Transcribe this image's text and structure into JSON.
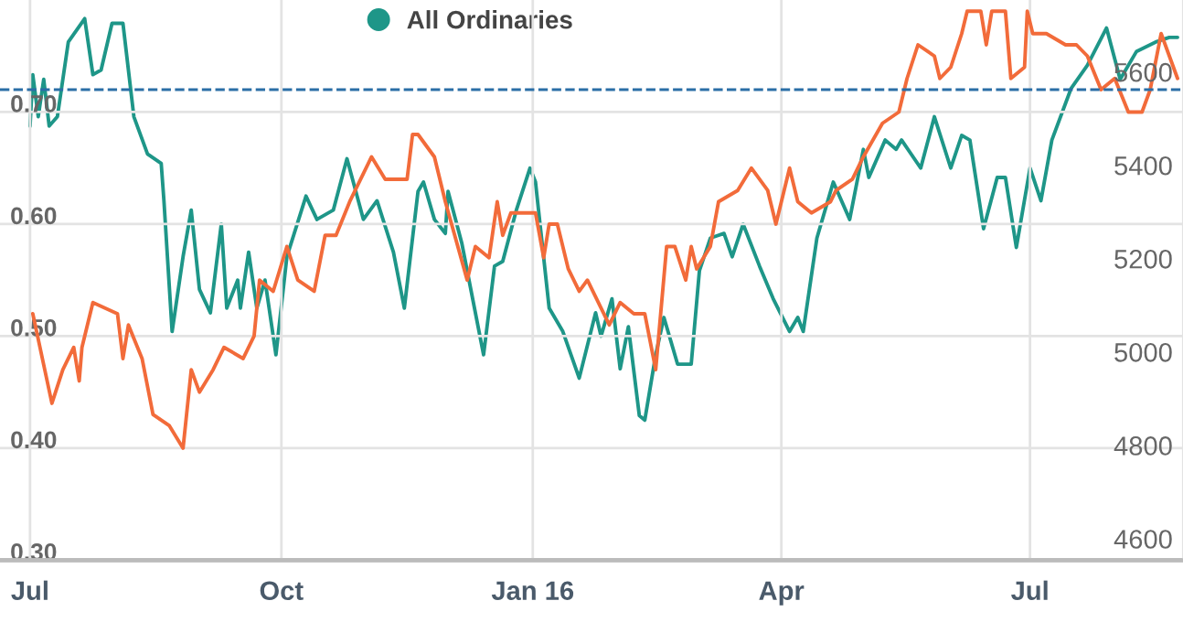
{
  "chart_data": {
    "type": "line",
    "legend": "top left",
    "grid": true,
    "xlim": [
      "2015-06-20",
      "2016-08-26"
    ],
    "xticks": [
      {
        "value": "2015-07-01",
        "label": "Jul"
      },
      {
        "value": "2015-10-01",
        "label": "Oct"
      },
      {
        "value": "2016-01-01",
        "label": "Jan 16"
      },
      {
        "value": "2016-04-01",
        "label": "Apr"
      },
      {
        "value": "2016-07-01",
        "label": "Jul"
      }
    ],
    "ylim": [
      0.3,
      0.8
    ],
    "yticks": [
      {
        "value": 0.3,
        "label": "0.30"
      },
      {
        "value": 0.4,
        "label": "0.40"
      },
      {
        "value": 0.5,
        "label": "0.50"
      },
      {
        "value": 0.6,
        "label": "0.60"
      },
      {
        "value": 0.7,
        "label": "0.70"
      }
    ],
    "y2lim": [
      4560,
      5760
    ],
    "y2ticks": [
      4600,
      4800,
      5000,
      5200,
      5400,
      5600
    ],
    "ref_lines": [
      {
        "axis": "y",
        "value": 0.72,
        "color": "#2a6ea6",
        "line_style": "dashed"
      }
    ],
    "series": [
      {
        "color": "#f26b3a",
        "x": [
          "2015-07-02",
          "2015-07-09",
          "2015-07-13",
          "2015-07-17",
          "2015-07-19",
          "2015-07-20",
          "2015-07-24",
          "2015-08-02",
          "2015-08-04",
          "2015-08-06",
          "2015-08-11",
          "2015-08-15",
          "2015-08-21",
          "2015-08-26",
          "2015-08-29",
          "2015-09-01",
          "2015-09-06",
          "2015-09-10",
          "2015-09-17",
          "2015-09-21",
          "2015-09-23",
          "2015-09-28",
          "2015-10-03",
          "2015-10-07",
          "2015-10-13",
          "2015-10-17",
          "2015-10-21",
          "2015-10-26",
          "2015-11-03",
          "2015-11-08",
          "2015-11-16",
          "2015-11-18",
          "2015-11-20",
          "2015-11-26",
          "2015-11-30",
          "2015-12-08",
          "2015-12-11",
          "2015-12-16",
          "2015-12-19",
          "2015-12-21",
          "2015-12-24",
          "2015-12-31",
          "2016-01-02",
          "2016-01-05",
          "2016-01-07",
          "2016-01-10",
          "2016-01-14",
          "2016-01-18",
          "2016-01-21",
          "2016-01-25",
          "2016-01-29",
          "2016-02-02",
          "2016-02-07",
          "2016-02-11",
          "2016-02-15",
          "2016-02-19",
          "2016-02-22",
          "2016-02-26",
          "2016-02-28",
          "2016-03-01",
          "2016-03-06",
          "2016-03-09",
          "2016-03-16",
          "2016-03-21",
          "2016-03-27",
          "2016-03-30",
          "2016-04-01",
          "2016-04-04",
          "2016-04-07",
          "2016-04-12",
          "2016-04-19",
          "2016-04-21",
          "2016-04-27",
          "2016-05-01",
          "2016-05-08",
          "2016-05-14",
          "2016-05-17",
          "2016-05-21",
          "2016-05-27",
          "2016-05-29",
          "2016-06-02",
          "2016-06-06",
          "2016-06-08",
          "2016-06-13",
          "2016-06-15",
          "2016-06-17",
          "2016-06-22",
          "2016-06-24",
          "2016-06-29",
          "2016-06-30",
          "2016-07-02",
          "2016-07-07",
          "2016-07-14",
          "2016-07-18",
          "2016-07-22",
          "2016-07-27",
          "2016-08-01",
          "2016-08-06",
          "2016-08-11",
          "2016-08-14",
          "2016-08-18",
          "2016-08-21",
          "2016-08-24"
        ],
        "values": [
          0.52,
          0.44,
          0.47,
          0.49,
          0.46,
          0.49,
          0.53,
          0.52,
          0.48,
          0.51,
          0.48,
          0.43,
          0.42,
          0.4,
          0.47,
          0.45,
          0.47,
          0.49,
          0.48,
          0.5,
          0.55,
          0.54,
          0.58,
          0.55,
          0.54,
          0.59,
          0.59,
          0.62,
          0.66,
          0.64,
          0.64,
          0.68,
          0.68,
          0.66,
          0.62,
          0.55,
          0.58,
          0.57,
          0.62,
          0.59,
          0.61,
          0.61,
          0.61,
          0.57,
          0.6,
          0.6,
          0.56,
          0.54,
          0.55,
          0.53,
          0.51,
          0.53,
          0.52,
          0.52,
          0.47,
          0.58,
          0.58,
          0.55,
          0.58,
          0.56,
          0.58,
          0.62,
          0.63,
          0.65,
          0.63,
          0.6,
          0.62,
          0.65,
          0.62,
          0.61,
          0.62,
          0.63,
          0.64,
          0.66,
          0.69,
          0.7,
          0.73,
          0.76,
          0.75,
          0.73,
          0.74,
          0.77,
          0.79,
          0.79,
          0.76,
          0.79,
          0.79,
          0.73,
          0.74,
          0.79,
          0.77,
          0.77,
          0.76,
          0.76,
          0.75,
          0.72,
          0.73,
          0.7,
          0.7,
          0.72,
          0.77,
          0.75,
          0.73
        ]
      },
      {
        "name": "All Ordinaries",
        "color": "#1e9688",
        "axis": "y2",
        "x": [
          "2015-07-01",
          "2015-07-02",
          "2015-07-04",
          "2015-07-06",
          "2015-07-08",
          "2015-07-11",
          "2015-07-15",
          "2015-07-21",
          "2015-07-24",
          "2015-07-27",
          "2015-07-31",
          "2015-08-04",
          "2015-08-08",
          "2015-08-13",
          "2015-08-18",
          "2015-08-19",
          "2015-08-22",
          "2015-08-26",
          "2015-08-29",
          "2015-09-01",
          "2015-09-05",
          "2015-09-09",
          "2015-09-11",
          "2015-09-15",
          "2015-09-16",
          "2015-09-19",
          "2015-09-22",
          "2015-09-25",
          "2015-09-29",
          "2015-10-03",
          "2015-10-10",
          "2015-10-14",
          "2015-10-20",
          "2015-10-25",
          "2015-10-31",
          "2015-11-05",
          "2015-11-11",
          "2015-11-15",
          "2015-11-20",
          "2015-11-22",
          "2015-11-26",
          "2015-11-30",
          "2015-12-01",
          "2015-12-06",
          "2015-12-14",
          "2015-12-18",
          "2015-12-21",
          "2015-12-26",
          "2015-12-31",
          "2016-01-02",
          "2016-01-07",
          "2016-01-12",
          "2016-01-18",
          "2016-01-24",
          "2016-01-26",
          "2016-01-30",
          "2016-02-02",
          "2016-02-05",
          "2016-02-09",
          "2016-02-11",
          "2016-02-15",
          "2016-02-18",
          "2016-02-23",
          "2016-02-28",
          "2016-03-02",
          "2016-03-06",
          "2016-03-11",
          "2016-03-14",
          "2016-03-18",
          "2016-03-24",
          "2016-03-29",
          "2016-04-04",
          "2016-04-07",
          "2016-04-09",
          "2016-04-14",
          "2016-04-20",
          "2016-04-26",
          "2016-05-01",
          "2016-05-03",
          "2016-05-09",
          "2016-05-13",
          "2016-05-15",
          "2016-05-22",
          "2016-05-27",
          "2016-06-02",
          "2016-06-06",
          "2016-06-09",
          "2016-06-14",
          "2016-06-19",
          "2016-06-22",
          "2016-06-26",
          "2016-07-01",
          "2016-07-05",
          "2016-07-09",
          "2016-07-16",
          "2016-07-22",
          "2016-07-29",
          "2016-08-03",
          "2016-08-09",
          "2016-08-16",
          "2016-08-21",
          "2016-08-24"
        ],
        "values": [
          5490,
          5600,
          5510,
          5590,
          5490,
          5510,
          5670,
          5720,
          5600,
          5610,
          5710,
          5710,
          5510,
          5430,
          5410,
          5330,
          5050,
          5210,
          5310,
          5140,
          5090,
          5280,
          5100,
          5160,
          5100,
          5220,
          5100,
          5160,
          5000,
          5210,
          5340,
          5290,
          5310,
          5420,
          5290,
          5330,
          5220,
          5100,
          5350,
          5370,
          5290,
          5260,
          5350,
          5240,
          5000,
          5190,
          5200,
          5310,
          5400,
          5370,
          5100,
          5050,
          4950,
          5090,
          5040,
          5120,
          4970,
          5060,
          4870,
          4860,
          5000,
          5080,
          4980,
          4980,
          5180,
          5250,
          5260,
          5210,
          5280,
          5190,
          5120,
          5050,
          5080,
          5050,
          5250,
          5370,
          5290,
          5440,
          5380,
          5460,
          5440,
          5460,
          5400,
          5510,
          5400,
          5470,
          5460,
          5270,
          5380,
          5380,
          5230,
          5400,
          5330,
          5460,
          5570,
          5620,
          5700,
          5590,
          5650,
          5670,
          5680,
          5680
        ]
      }
    ]
  }
}
